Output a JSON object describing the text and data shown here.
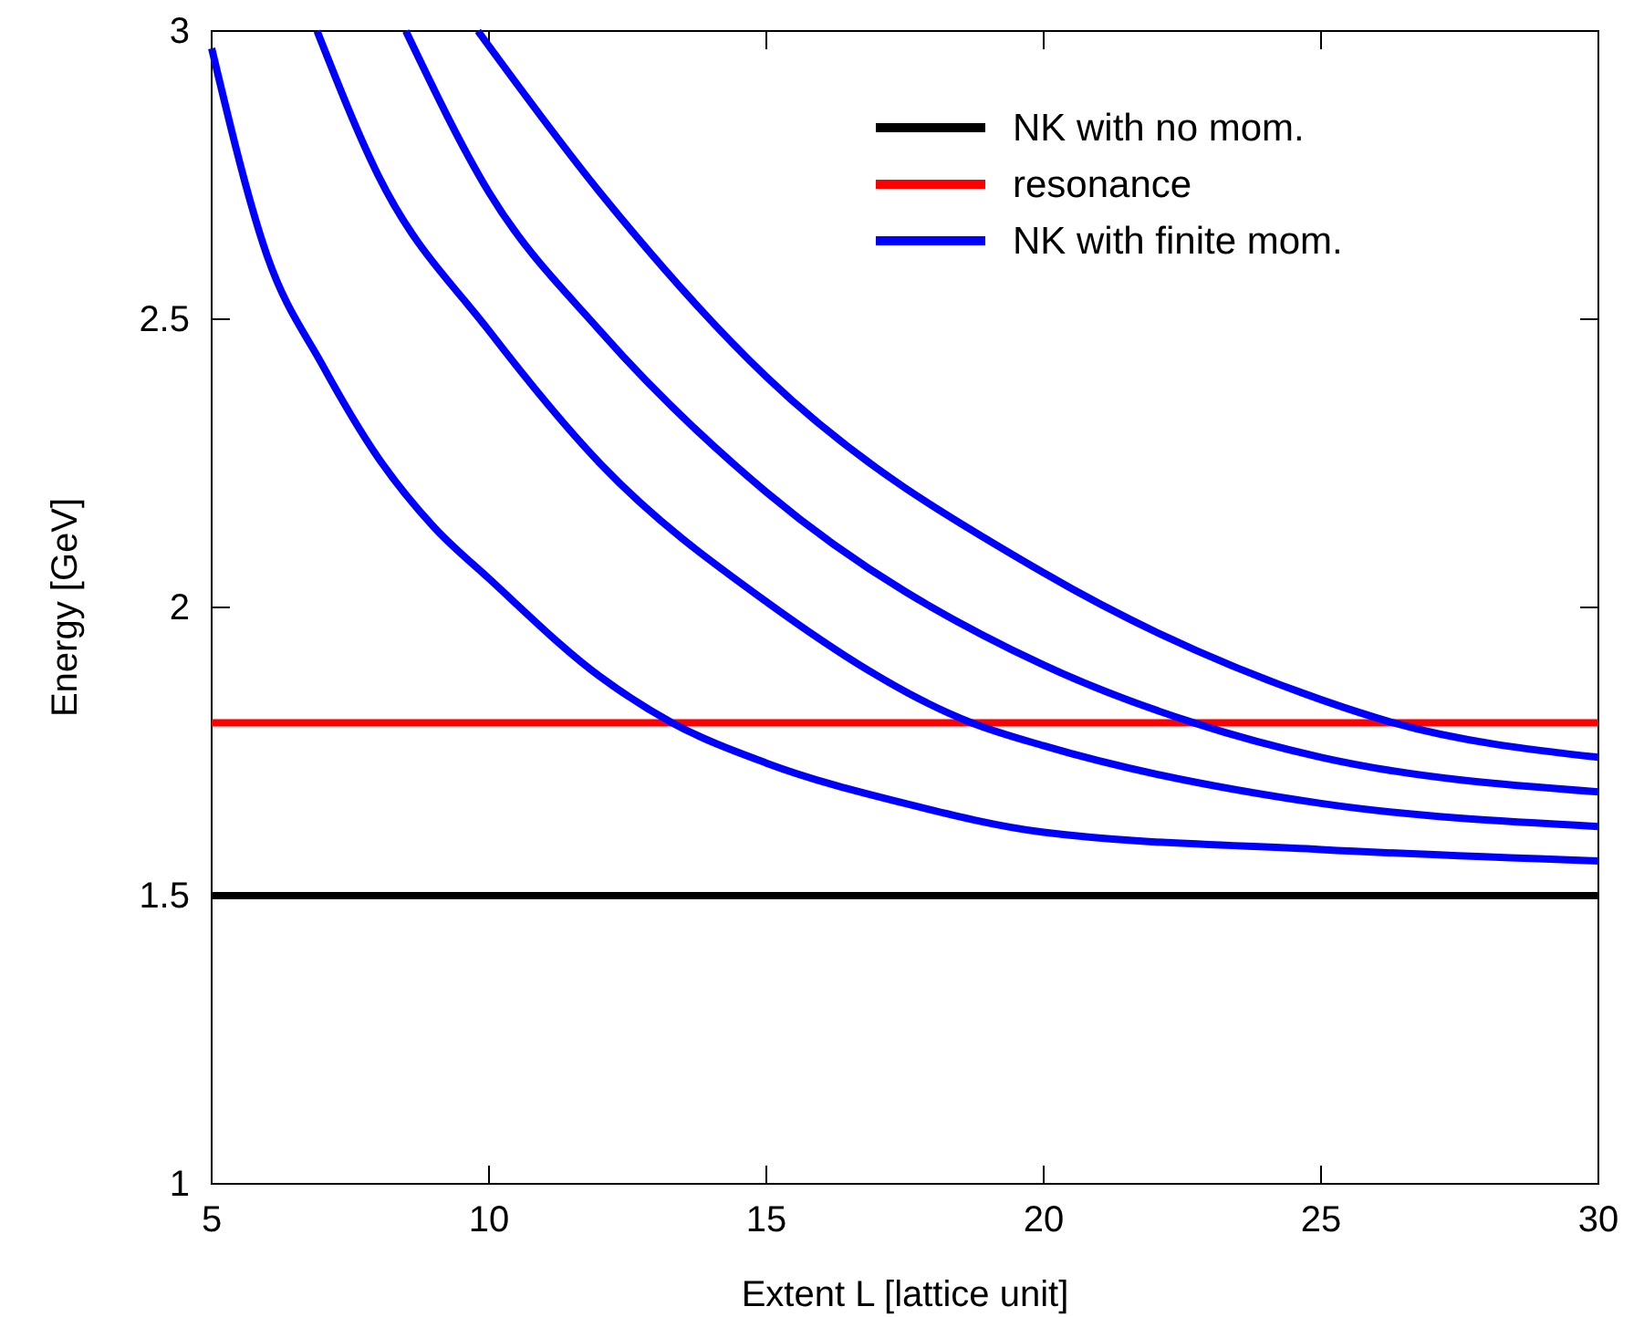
{
  "chart_data": {
    "type": "line",
    "xlabel": "Extent L [lattice unit]",
    "ylabel": "Energy [GeV]",
    "xlim": [
      5,
      30
    ],
    "ylim": [
      1,
      3
    ],
    "xticks": [
      5,
      10,
      15,
      20,
      25,
      30
    ],
    "yticks": [
      1,
      1.5,
      2,
      2.5,
      3
    ],
    "grid": false,
    "legend": "top right",
    "marker": "none",
    "line_style": "solid",
    "series": [
      {
        "name": "NK with no mom.",
        "color": "#000000",
        "x": [
          5,
          30
        ],
        "values": [
          1.5,
          1.5
        ]
      },
      {
        "name": "resonance",
        "color": "#ff0000",
        "x": [
          5,
          30
        ],
        "values": [
          1.8,
          1.8
        ]
      },
      {
        "name": "NK with finite mom.",
        "color": "#0000ff",
        "x": [
          5,
          6,
          7,
          8,
          9,
          10,
          12,
          13.3,
          15,
          17.5,
          20,
          25,
          30
        ],
        "values": [
          2.97,
          2.61,
          2.42,
          2.26,
          2.14,
          2.05,
          1.88,
          1.8,
          1.73,
          1.66,
          1.61,
          1.58,
          1.56
        ]
      },
      {
        "color": "#0000ff",
        "x": [
          6.9,
          8,
          10,
          12,
          15,
          18.7,
          20,
          25,
          30
        ],
        "values": [
          3.0,
          2.75,
          2.48,
          2.25,
          2.01,
          1.8,
          1.76,
          1.66,
          1.62
        ]
      },
      {
        "color": "#0000ff",
        "x": [
          8.5,
          10,
          12,
          15,
          20,
          22.7,
          25,
          30
        ],
        "values": [
          3.0,
          2.72,
          2.48,
          2.2,
          1.9,
          1.8,
          1.74,
          1.68
        ]
      },
      {
        "color": "#0000ff",
        "x": [
          9.8,
          12,
          15,
          20,
          25,
          26.3,
          30
        ],
        "values": [
          3.0,
          2.72,
          2.4,
          2.06,
          1.84,
          1.8,
          1.74
        ]
      }
    ]
  }
}
